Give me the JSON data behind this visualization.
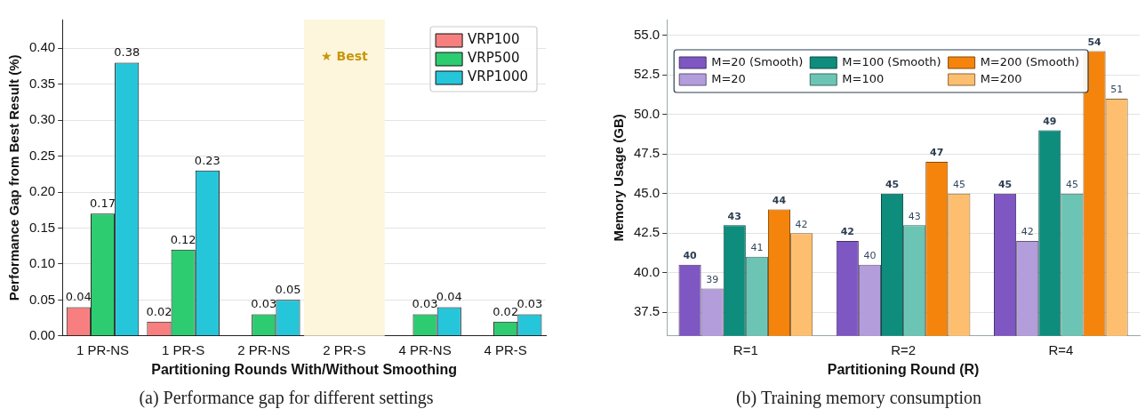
{
  "chart_data": [
    {
      "type": "bar",
      "xlabel": "Partitioning Rounds With/Without Smoothing",
      "ylabel": "Performance Gap from Best Result (%)",
      "categories": [
        "1 PR-NS",
        "1 PR-S",
        "2 PR-NS",
        "2 PR-S",
        "4 PR-NS",
        "4 PR-S"
      ],
      "series": [
        {
          "name": "VRP100",
          "color": "#f77f7f",
          "values": [
            0.04,
            0.02,
            0,
            0,
            0,
            0
          ],
          "value_labels": [
            "0.04",
            "0.02",
            null,
            null,
            null,
            null
          ]
        },
        {
          "name": "VRP500",
          "color": "#2ecc71",
          "values": [
            0.17,
            0.12,
            0.03,
            0,
            0.03,
            0.02
          ],
          "value_labels": [
            "0.17",
            "0.12",
            "0.03",
            null,
            "0.03",
            "0.02"
          ]
        },
        {
          "name": "VRP1000",
          "color": "#26c6da",
          "values": [
            0.38,
            0.23,
            0.05,
            0,
            0.04,
            0.03
          ],
          "value_labels": [
            "0.38",
            "0.23",
            "0.05",
            null,
            "0.04",
            "0.03"
          ]
        }
      ],
      "ylim": [
        0,
        0.44
      ],
      "yticks": [
        {
          "value": 0,
          "label": "0.00"
        },
        {
          "value": 0.05,
          "label": "0.05"
        },
        {
          "value": 0.1,
          "label": "0.10"
        },
        {
          "value": 0.15,
          "label": "0.15"
        },
        {
          "value": 0.2,
          "label": "0.20"
        },
        {
          "value": 0.25,
          "label": "0.25"
        },
        {
          "value": 0.3,
          "label": "0.30"
        },
        {
          "value": 0.35,
          "label": "0.35"
        },
        {
          "value": 0.4,
          "label": "0.40"
        }
      ],
      "bands": [
        {
          "axis": "x",
          "from": "2 PR-S",
          "to": "2 PR-S",
          "label": "★ Best",
          "color": "#fdf6dc"
        }
      ],
      "grid": "y",
      "legend": "top right",
      "annotations": [
        "(a) Performance gap for different settings"
      ]
    },
    {
      "type": "bar",
      "xlabel": "Partitioning Round (R)",
      "ylabel": "Memory Usage (GB)",
      "categories": [
        "R=1",
        "R=2",
        "R=4"
      ],
      "series": [
        {
          "name": "M=20 (Smooth)",
          "color": "#7e57c2",
          "values": [
            40.5,
            42,
            45
          ],
          "value_labels": [
            "40",
            "42",
            "45"
          ]
        },
        {
          "name": "M=20",
          "color": "#b39ddb",
          "values": [
            39,
            40.5,
            42
          ],
          "value_labels": [
            "39",
            "40",
            "42"
          ]
        },
        {
          "name": "M=100 (Smooth)",
          "color": "#0e8c7c",
          "values": [
            43,
            45,
            49
          ],
          "value_labels": [
            "43",
            "45",
            "49"
          ]
        },
        {
          "name": "M=100",
          "color": "#6cc4b4",
          "values": [
            41,
            43,
            45
          ],
          "value_labels": [
            "41",
            "43",
            "45"
          ]
        },
        {
          "name": "M=200 (Smooth)",
          "color": "#f5840c",
          "values": [
            44,
            47,
            54
          ],
          "value_labels": [
            "44",
            "47",
            "54"
          ]
        },
        {
          "name": "M=200",
          "color": "#fdbf6f",
          "values": [
            42.5,
            45,
            51
          ],
          "value_labels": [
            "42",
            "45",
            "51"
          ]
        }
      ],
      "ylim": [
        36,
        56
      ],
      "yticks": [
        37.5,
        {
          "value": 40,
          "label": "40.0"
        },
        42.5,
        {
          "value": 45,
          "label": "45.0"
        },
        47.5,
        {
          "value": 50,
          "label": "50.0"
        },
        52.5,
        {
          "value": 55,
          "label": "55.0"
        }
      ],
      "grid": "y",
      "legend": "top left",
      "annotations": [
        "(b) Training memory consumption"
      ]
    }
  ]
}
